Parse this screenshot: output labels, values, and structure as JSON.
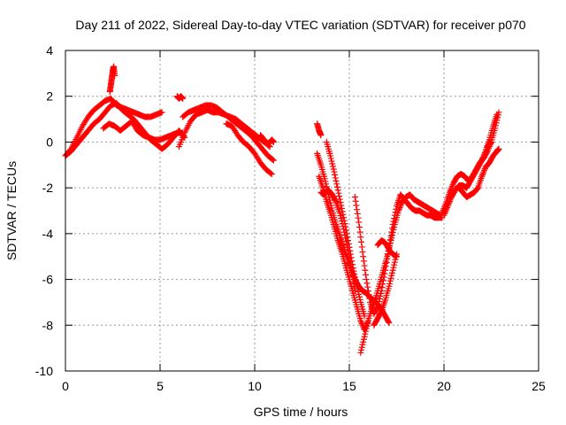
{
  "chart_data": {
    "type": "scatter",
    "title": "Day 211 of 2022, Sidereal Day-to-day VTEC variation (SDTVAR) for receiver p070",
    "xlabel": "GPS time / hours",
    "ylabel": "SDTVAR / TECUs",
    "xlim": [
      0,
      25
    ],
    "ylim": [
      -10,
      4
    ],
    "xticks": [
      "0",
      "5",
      "10",
      "15",
      "20",
      "25"
    ],
    "yticks": [
      "4",
      "2",
      "0",
      "-2",
      "-4",
      "-6",
      "-8",
      "-10"
    ],
    "grid": true,
    "legend": "none",
    "marker": "+",
    "color": "#ff0000",
    "series": [
      {
        "x": [
          0.0,
          0.3,
          0.6,
          0.9,
          1.2,
          1.5,
          1.8,
          2.1,
          2.4,
          2.7,
          3.0,
          3.3,
          3.6,
          3.9,
          4.2,
          4.5,
          4.8,
          5.1
        ],
        "y": [
          -0.6,
          -0.3,
          0.2,
          0.7,
          1.1,
          1.4,
          1.6,
          1.8,
          1.9,
          1.6,
          1.5,
          1.4,
          1.3,
          1.2,
          1.1,
          1.1,
          1.2,
          1.3
        ]
      },
      {
        "x": [
          0.0,
          0.3,
          0.6,
          0.9,
          1.2,
          1.5,
          1.8,
          2.1,
          2.4,
          2.7,
          3.0,
          3.3,
          3.6,
          3.9,
          4.2,
          4.5,
          4.8,
          5.1,
          5.4,
          5.7,
          6.0,
          6.3
        ],
        "y": [
          -0.6,
          -0.4,
          -0.1,
          0.2,
          0.5,
          0.8,
          1.0,
          1.3,
          1.6,
          1.7,
          1.4,
          1.2,
          1.0,
          0.7,
          0.4,
          0.1,
          -0.1,
          -0.3,
          -0.1,
          0.2,
          0.5,
          0.2
        ]
      },
      {
        "x": [
          2.0,
          2.3,
          2.6,
          2.9,
          3.2,
          3.5,
          3.8,
          4.1,
          4.4,
          4.7,
          5.0,
          5.3,
          5.6,
          5.9,
          6.2
        ],
        "y": [
          0.6,
          0.8,
          0.7,
          0.5,
          0.7,
          0.9,
          0.5,
          0.3,
          0.2,
          0.1,
          0.1,
          0.2,
          0.3,
          0.4,
          0.4
        ]
      },
      {
        "x": [
          2.35,
          2.4,
          2.45,
          2.5,
          2.55,
          2.6
        ],
        "y": [
          2.2,
          2.5,
          2.8,
          3.1,
          3.3,
          2.9
        ]
      },
      {
        "x": [
          5.9,
          6.0,
          6.1,
          6.2
        ],
        "y": [
          2.0,
          1.9,
          2.0,
          1.9
        ]
      },
      {
        "x": [
          6.0,
          6.3,
          6.6,
          6.9,
          7.2,
          7.5,
          7.8,
          8.1,
          8.4,
          8.7,
          9.0,
          9.3,
          9.6,
          9.9,
          10.2,
          10.5,
          10.8
        ],
        "y": [
          -0.2,
          0.4,
          0.9,
          1.2,
          1.3,
          1.4,
          1.3,
          1.3,
          1.2,
          1.1,
          1.0,
          0.8,
          0.6,
          0.4,
          0.2,
          0.0,
          -0.2
        ]
      },
      {
        "x": [
          6.2,
          6.5,
          6.8,
          7.1,
          7.4,
          7.7,
          8.0,
          8.3,
          8.6,
          8.9,
          9.2,
          9.5,
          9.8,
          10.1,
          10.4,
          10.7,
          11.0
        ],
        "y": [
          1.1,
          1.3,
          1.4,
          1.5,
          1.6,
          1.6,
          1.5,
          1.3,
          1.1,
          0.9,
          0.7,
          0.5,
          0.3,
          0.0,
          -0.3,
          -0.6,
          -0.8
        ]
      },
      {
        "x": [
          8.5,
          8.8,
          9.1,
          9.4,
          9.7,
          10.0,
          10.3,
          10.6,
          10.9
        ],
        "y": [
          0.8,
          0.7,
          0.3,
          0.0,
          -0.2,
          -0.5,
          -0.9,
          -1.2,
          -1.4
        ]
      },
      {
        "x": [
          10.3,
          10.5,
          10.7,
          10.9,
          11.0
        ],
        "y": [
          0.3,
          0.1,
          -0.1,
          0.1,
          0.0
        ]
      },
      {
        "x": [
          13.3,
          13.4,
          13.5
        ],
        "y": [
          0.8,
          0.5,
          0.3
        ]
      },
      {
        "x": [
          13.3,
          13.5,
          13.7,
          13.9,
          14.1,
          14.3,
          14.5,
          14.7,
          14.9,
          15.1,
          15.3,
          15.5,
          15.7,
          15.9,
          16.1,
          16.3,
          16.5,
          16.7,
          16.9,
          17.1
        ],
        "y": [
          -0.5,
          -1.0,
          -1.6,
          -2.3,
          -3.0,
          -3.6,
          -4.1,
          -4.6,
          -5.1,
          -5.6,
          -6.0,
          -6.3,
          -6.5,
          -6.6,
          -6.8,
          -6.9,
          -7.1,
          -7.3,
          -7.6,
          -7.9
        ]
      },
      {
        "x": [
          13.4,
          13.6,
          13.8,
          14.0,
          14.2,
          14.4,
          14.6,
          14.8,
          15.0,
          15.2,
          15.4,
          15.6,
          15.8,
          16.0
        ],
        "y": [
          -1.5,
          -2.0,
          -2.6,
          -3.1,
          -3.7,
          -4.3,
          -4.8,
          -5.4,
          -6.0,
          -6.6,
          -7.2,
          -7.8,
          -8.2,
          -7.8
        ]
      },
      {
        "x": [
          13.8,
          14.0,
          14.2,
          14.4,
          14.6,
          14.8,
          15.0,
          15.2,
          15.4,
          15.6,
          15.8
        ],
        "y": [
          0.0,
          -0.6,
          -1.3,
          -2.1,
          -2.9,
          -3.7,
          -4.6,
          -5.5,
          -6.3,
          -7.0,
          -7.6
        ]
      },
      {
        "x": [
          13.5,
          13.7,
          13.9,
          14.1,
          14.3,
          14.5,
          14.7,
          14.9,
          15.1,
          15.3
        ],
        "y": [
          -2.2,
          -2.3,
          -2.1,
          -2.3,
          -2.6,
          -3.1,
          -3.8,
          -4.6,
          -5.5,
          -6.5
        ]
      },
      {
        "x": [
          15.3,
          15.5,
          15.7,
          15.9,
          16.1,
          16.3,
          16.5,
          16.7,
          16.9,
          17.1,
          17.3,
          17.5,
          17.7,
          17.9,
          18.1,
          18.3,
          18.5,
          18.7,
          18.9,
          19.1,
          19.3,
          19.5,
          19.7,
          19.9
        ],
        "y": [
          -2.4,
          -3.5,
          -4.8,
          -6.0,
          -7.0,
          -7.5,
          -7.2,
          -6.5,
          -5.6,
          -4.6,
          -3.6,
          -2.8,
          -2.3,
          -2.5,
          -2.7,
          -2.9,
          -3.0,
          -3.0,
          -3.1,
          -3.2,
          -3.2,
          -3.3,
          -3.3,
          -3.3
        ]
      },
      {
        "x": [
          15.6,
          15.8,
          16.0,
          16.2,
          16.4,
          16.6,
          16.8,
          17.0,
          17.2,
          17.4,
          17.6,
          17.8,
          18.0,
          18.2,
          18.4,
          18.6,
          18.8,
          19.0,
          19.2,
          19.4,
          19.6,
          19.8
        ],
        "y": [
          -9.2,
          -8.5,
          -7.8,
          -7.2,
          -6.8,
          -6.2,
          -5.6,
          -5.0,
          -4.3,
          -3.6,
          -3.0,
          -2.6,
          -2.4,
          -2.3,
          -2.5,
          -2.6,
          -2.7,
          -2.8,
          -2.9,
          -3.0,
          -3.1,
          -3.2
        ]
      },
      {
        "x": [
          16.5,
          16.7,
          16.9,
          17.1,
          17.3,
          17.5
        ],
        "y": [
          -4.5,
          -4.3,
          -4.4,
          -4.7,
          -4.9,
          -5.0
        ]
      },
      {
        "x": [
          16.3,
          16.5,
          16.7,
          16.9,
          17.1,
          17.3,
          17.5
        ],
        "y": [
          -8.0,
          -7.7,
          -7.4,
          -6.9,
          -6.3,
          -5.6,
          -4.9
        ]
      },
      {
        "x": [
          19.9,
          20.1,
          20.3,
          20.5,
          20.7,
          20.9,
          21.1,
          21.3,
          21.5,
          21.7,
          21.9,
          22.1,
          22.3,
          22.5,
          22.7,
          22.9
        ],
        "y": [
          -3.1,
          -2.7,
          -2.2,
          -1.8,
          -1.5,
          -1.4,
          -1.5,
          -1.7,
          -1.5,
          -1.2,
          -0.9,
          -0.7,
          -0.4,
          0.0,
          0.6,
          1.3
        ]
      },
      {
        "x": [
          20.0,
          20.2,
          20.4,
          20.6,
          20.8,
          21.0,
          21.2,
          21.4,
          21.6,
          21.8,
          22.0,
          22.2,
          22.4,
          22.6,
          22.8
        ],
        "y": [
          -3.2,
          -2.8,
          -2.4,
          -2.1,
          -1.9,
          -1.9,
          -2.0,
          -1.7,
          -1.4,
          -1.1,
          -0.8,
          -0.4,
          0.1,
          0.7,
          1.2
        ]
      },
      {
        "x": [
          20.8,
          21.0,
          21.2,
          21.4,
          21.6,
          21.8,
          22.0,
          22.2,
          22.4,
          22.6,
          22.8,
          22.9
        ],
        "y": [
          -2.0,
          -2.2,
          -2.4,
          -2.3,
          -2.2,
          -2.0,
          -1.5,
          -1.1,
          -0.9,
          -0.6,
          -0.4,
          -0.3
        ]
      },
      {
        "x": [
          22.3,
          22.4,
          22.5
        ],
        "y": [
          -0.2,
          -0.1,
          0.0
        ]
      }
    ]
  }
}
